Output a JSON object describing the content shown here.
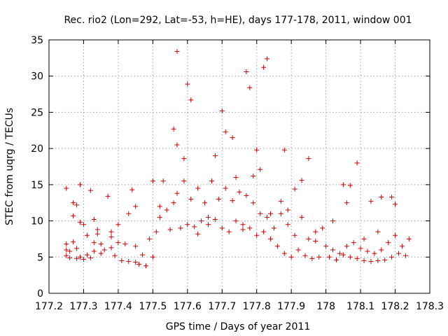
{
  "chart_data": {
    "type": "scatter",
    "title": "Rec. rio2 (Lon=292, Lat=-53, h=HE), days 177-178, 2011, window 001",
    "xlabel": "GPS time / Days of year 2011",
    "ylabel": "STEC from uqrg / TECUs",
    "xlim": [
      177.2,
      178.3
    ],
    "ylim": [
      0,
      35
    ],
    "grid": true,
    "marker": "+",
    "color": "#d00000",
    "xticks": [
      177.2,
      177.3,
      177.4,
      177.5,
      177.6,
      177.7,
      177.8,
      177.9,
      178.0,
      178.1,
      178.2,
      178.3
    ],
    "xtick_labels": [
      "177.2",
      "177.3",
      "177.4",
      "177.5",
      "177.6",
      "177.7",
      "177.8",
      "177.9",
      "178",
      "178.1",
      "178.2",
      "178.3"
    ],
    "yticks": [
      0,
      5,
      10,
      15,
      20,
      25,
      30,
      35
    ],
    "ytick_labels": [
      "0",
      "5",
      "10",
      "15",
      "20",
      "25",
      "30",
      "35"
    ],
    "series": [
      {
        "name": "STEC",
        "x": [
          177.25,
          177.25,
          177.25,
          177.25,
          177.26,
          177.26,
          177.27,
          177.27,
          177.27,
          177.28,
          177.28,
          177.28,
          177.29,
          177.29,
          177.3,
          177.3,
          177.31,
          177.31,
          177.32,
          177.32,
          177.33,
          177.33,
          177.34,
          177.35,
          177.35,
          177.36,
          177.37,
          177.38,
          177.38,
          177.39,
          177.4,
          177.4,
          177.41,
          177.42,
          177.43,
          177.44,
          177.45,
          177.45,
          177.46,
          177.47,
          177.48,
          177.49,
          177.5,
          177.51,
          177.52,
          177.53,
          177.54,
          177.55,
          177.56,
          177.57,
          177.58,
          177.59,
          177.6,
          177.61,
          177.62,
          177.63,
          177.64,
          177.65,
          177.66,
          177.67,
          177.68,
          177.69,
          177.7,
          177.71,
          177.72,
          177.73,
          177.74,
          177.75,
          177.76,
          177.77,
          177.78,
          177.79,
          177.8,
          177.81,
          177.82,
          177.83,
          177.84,
          177.85,
          177.86,
          177.87,
          177.88,
          177.89,
          177.9,
          177.91,
          177.92,
          177.93,
          177.94,
          177.95,
          177.96,
          177.97,
          177.98,
          177.99,
          178.0,
          178.01,
          178.02,
          178.03,
          178.04,
          178.05,
          178.06,
          178.07,
          178.08,
          178.09,
          178.1,
          178.11,
          178.12,
          178.13,
          178.14,
          178.15,
          178.16,
          178.17,
          178.18,
          178.19,
          178.2,
          178.21,
          178.22,
          178.23,
          178.24,
          177.29,
          177.34,
          177.43,
          177.52,
          177.56,
          177.57,
          177.6,
          177.61,
          177.7,
          177.71,
          177.77,
          177.78,
          177.8,
          177.82,
          177.83,
          177.88,
          177.93,
          177.95,
          178.07,
          178.09,
          178.16,
          178.19,
          177.57,
          177.59,
          177.68,
          177.73,
          177.79,
          177.81,
          177.87,
          177.91,
          178.05,
          178.13,
          178.2,
          177.33,
          177.38,
          177.45,
          177.5,
          177.63,
          177.66,
          177.74,
          177.76,
          177.84,
          177.89,
          177.97,
          178.02,
          178.06,
          178.11,
          178.15
        ],
        "y": [
          5.2,
          6.0,
          6.8,
          14.5,
          4.9,
          5.8,
          12.5,
          7.1,
          10.7,
          4.8,
          6.2,
          12.2,
          5.0,
          15.0,
          4.7,
          9.5,
          5.3,
          8.0,
          4.9,
          14.2,
          5.8,
          7.0,
          8.8,
          5.5,
          6.8,
          6.0,
          13.4,
          6.3,
          8.5,
          5.2,
          7.0,
          9.5,
          4.5,
          6.8,
          4.4,
          14.3,
          4.3,
          6.5,
          4.0,
          5.3,
          3.8,
          7.5,
          5.0,
          8.5,
          10.5,
          15.5,
          11.5,
          8.8,
          12.5,
          13.8,
          9.0,
          15.5,
          9.5,
          13.0,
          9.2,
          14.5,
          10.0,
          12.5,
          9.5,
          15.5,
          10.2,
          13.0,
          9.0,
          14.5,
          8.5,
          12.8,
          10.0,
          14.0,
          8.8,
          13.5,
          9.0,
          12.5,
          8.0,
          11.0,
          8.5,
          10.5,
          7.5,
          9.0,
          6.5,
          11.0,
          5.5,
          9.5,
          5.0,
          8.0,
          6.0,
          10.5,
          5.2,
          7.5,
          4.8,
          8.5,
          5.0,
          9.0,
          6.5,
          5.0,
          6.0,
          4.6,
          5.5,
          5.3,
          6.5,
          5.0,
          7.0,
          4.8,
          6.2,
          4.5,
          5.8,
          4.4,
          5.5,
          4.5,
          6.0,
          4.6,
          7.0,
          5.0,
          8.0,
          5.5,
          6.5,
          5.2,
          7.5,
          9.8,
          8.2,
          11.0,
          12.0,
          22.7,
          33.4,
          28.9,
          26.7,
          25.2,
          22.3,
          30.6,
          28.4,
          19.8,
          31.2,
          32.4,
          19.8,
          15.6,
          18.6,
          14.9,
          18.0,
          13.3,
          13.3,
          20.5,
          18.6,
          19.0,
          21.5,
          16.2,
          17.1,
          12.7,
          14.4,
          15.0,
          12.7,
          12.3,
          10.2,
          7.8,
          12.0,
          15.5,
          8.2,
          10.5,
          16.0,
          9.5,
          11.0,
          11.5,
          7.2,
          10.0,
          12.5,
          7.5,
          8.5
        ]
      }
    ]
  }
}
